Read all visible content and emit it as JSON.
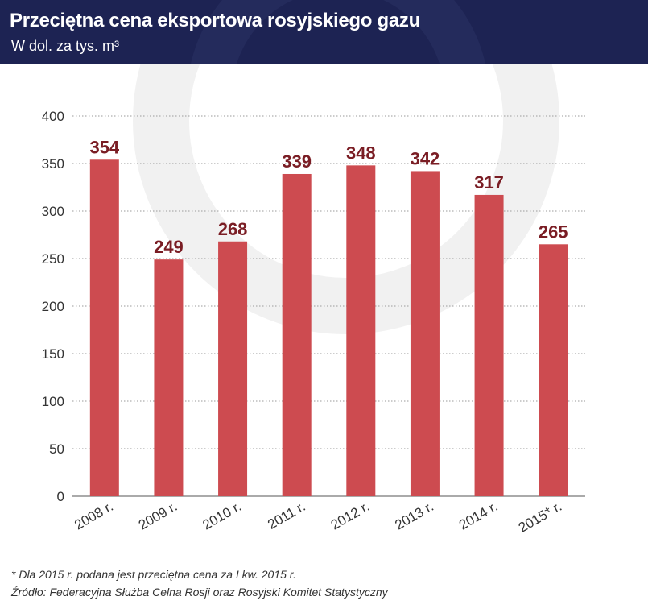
{
  "colors": {
    "header": "#1d2353",
    "bar": "#cd4b50",
    "bar_label": "#7a1d24",
    "axis_text": "#333333",
    "grid": "#9a9a9a"
  },
  "header": {
    "title": "Przeciętna cena eksportowa rosyjskiego gazu",
    "subtitle": "W dol. za tys. m³"
  },
  "chart_data": {
    "type": "bar",
    "title": "Przeciętna cena eksportowa rosyjskiego gazu",
    "subtitle": "W dol. za tys. m³",
    "xlabel": "",
    "ylabel": "",
    "categories": [
      "2008 r.",
      "2009 r.",
      "2010 r.",
      "2011 r.",
      "2012 r.",
      "2013 r.",
      "2014 r.",
      "2015* r."
    ],
    "values": [
      354,
      249,
      268,
      339,
      348,
      342,
      317,
      265
    ],
    "ylim": [
      0,
      400
    ],
    "yticks": [
      0,
      50,
      100,
      150,
      200,
      250,
      300,
      350,
      400
    ],
    "grid": true,
    "legend": "none"
  },
  "footer": {
    "footnote": "* Dla 2015 r. podana jest przeciętna cena za I kw. 2015 r.",
    "source": "Źródło: Federacyjna Służba Celna Rosji oraz Rosyjski Komitet Statystyczny"
  }
}
